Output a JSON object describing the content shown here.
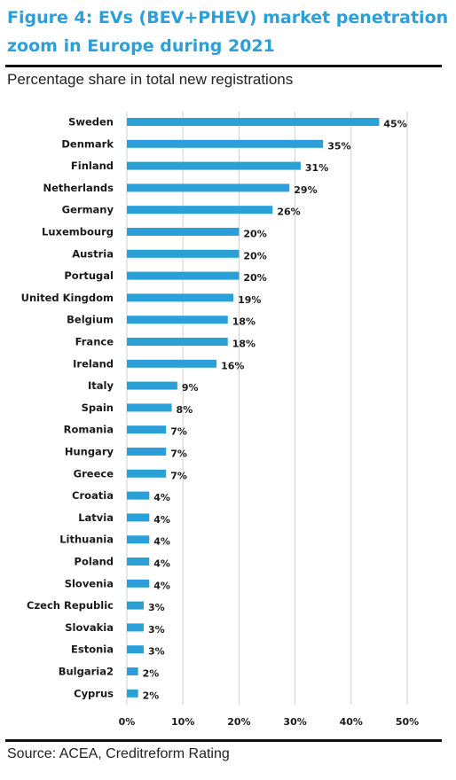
{
  "title": "Figure 4: EVs (BEV+PHEV) market penetration zoom in Europe during 2021",
  "subtitle": "Percentage share in total new registrations",
  "source": "Source: ACEA, Creditreform Rating",
  "colors": {
    "title": "#2a9fd8",
    "bar": "#2a9fd8",
    "grid": "#cfcfcf"
  },
  "chart_data": {
    "type": "bar",
    "orientation": "horizontal",
    "title": "Figure 4: EVs (BEV+PHEV) market penetration zoom in Europe during 2021",
    "subtitle": "Percentage share in total new registrations",
    "categories": [
      "Sweden",
      "Denmark",
      "Finland",
      "Netherlands",
      "Germany",
      "Luxembourg",
      "Austria",
      "Portugal",
      "United Kingdom",
      "Belgium",
      "France",
      "Ireland",
      "Italy",
      "Spain",
      "Romania",
      "Hungary",
      "Greece",
      "Croatia",
      "Latvia",
      "Lithuania",
      "Poland",
      "Slovenia",
      "Czech Republic",
      "Slovakia",
      "Estonia",
      "Bulgaria2",
      "Cyprus"
    ],
    "values": [
      45,
      35,
      31,
      29,
      26,
      20,
      20,
      20,
      19,
      18,
      18,
      16,
      9,
      8,
      7,
      7,
      7,
      4,
      4,
      4,
      4,
      4,
      3,
      3,
      3,
      2,
      2
    ],
    "value_labels": [
      "45%",
      "35%",
      "31%",
      "29%",
      "26%",
      "20%",
      "20%",
      "20%",
      "19%",
      "18%",
      "18%",
      "16%",
      "9%",
      "8%",
      "7%",
      "7%",
      "7%",
      "4%",
      "4%",
      "4%",
      "4%",
      "4%",
      "3%",
      "3%",
      "3%",
      "2%",
      "2%"
    ],
    "xlim": [
      0,
      50
    ],
    "xticks": [
      0,
      10,
      20,
      30,
      40,
      50
    ],
    "xtick_labels": [
      "0%",
      "10%",
      "20%",
      "30%",
      "40%",
      "50%"
    ],
    "grid": true
  }
}
